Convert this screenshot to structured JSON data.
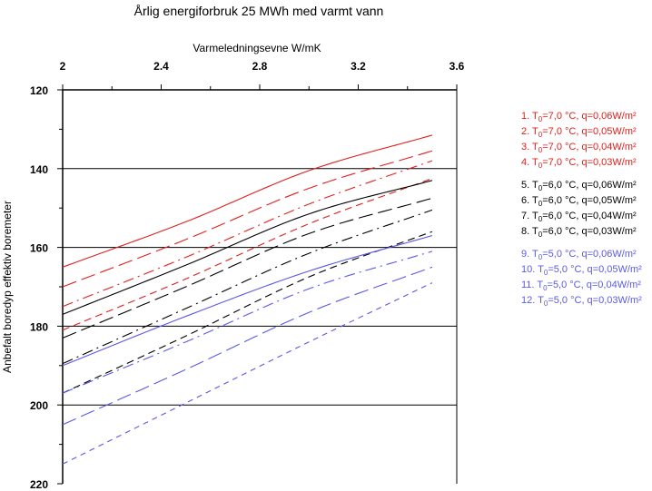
{
  "chart_data": {
    "type": "line",
    "title": "Årlig energiforbruk 25 MWh med varmt vann",
    "xlabel": "Varmeledningsevne W/mK",
    "ylabel": "Anbefalt boredyp effektiv boremeter",
    "xlim": [
      2,
      3.6
    ],
    "ylim": [
      120,
      220
    ],
    "y_inverted": true,
    "x_axis_position": "top",
    "x_ticks": [
      "2",
      "2.4",
      "2.8",
      "3.2",
      "3.6"
    ],
    "y_ticks": [
      "120",
      "140",
      "160",
      "180",
      "200",
      "220"
    ],
    "grid_y": [
      140,
      160,
      180,
      200
    ],
    "legend_position": "right",
    "series": [
      {
        "name": "1. T₀=7,0 °C, q=0,06W/m²",
        "prefix": "1. T",
        "sub": "0",
        "suffix": "=7,0 °C, q=0,06W/m²",
        "color": "#e0201c",
        "dash": "",
        "x": [
          2,
          2.5,
          3.0,
          3.5
        ],
        "y": [
          165,
          153.5,
          140.5,
          131.5
        ]
      },
      {
        "name": "2. T₀=7,0 °C, q=0,05W/m²",
        "prefix": "2. T",
        "sub": "0",
        "suffix": "=7,0 °C, q=0,05W/m²",
        "color": "#e0201c",
        "dash": "16 6",
        "x": [
          2,
          2.5,
          3.0,
          3.5
        ],
        "y": [
          170,
          158,
          145,
          135.5
        ]
      },
      {
        "name": "3. T₀=7,0 °C, q=0,04W/m²",
        "prefix": "3. T",
        "sub": "0",
        "suffix": "=7,0 °C, q=0,04W/m²",
        "color": "#e0201c",
        "dash": "12 5 2 5",
        "x": [
          2,
          2.5,
          3.0,
          3.5
        ],
        "y": [
          175,
          162.5,
          149,
          138
        ]
      },
      {
        "name": "4. T₀=7,0 °C, q=0,03W/m²",
        "prefix": "4. T",
        "sub": "0",
        "suffix": "=7,0 °C, q=0,03W/m²",
        "color": "#e0201c",
        "dash": "8 5",
        "x": [
          2,
          2.5,
          3.0,
          3.5
        ],
        "y": [
          181,
          168,
          154,
          142.5
        ]
      },
      {
        "name": "5. T₀=6,0 °C, q=0,06W/m²",
        "prefix": "5. T",
        "sub": "0",
        "suffix": "=6,0 °C, q=0,06W/m²",
        "color": "#000000",
        "dash": "",
        "x": [
          2,
          2.5,
          3.0,
          3.5
        ],
        "y": [
          177,
          164.5,
          151.5,
          143
        ]
      },
      {
        "name": "6. T₀=6,0 °C, q=0,05W/m²",
        "prefix": "6. T",
        "sub": "0",
        "suffix": "=6,0 °C, q=0,05W/m²",
        "color": "#000000",
        "dash": "16 6",
        "x": [
          2,
          2.5,
          3.0,
          3.5
        ],
        "y": [
          183,
          170,
          156.5,
          147.5
        ]
      },
      {
        "name": "7. T₀=6,0 °C, q=0,04W/m²",
        "prefix": "7. T",
        "sub": "0",
        "suffix": "=6,0 °C, q=0,04W/m²",
        "color": "#000000",
        "dash": "12 5 2 5",
        "x": [
          2,
          2.5,
          3.0,
          3.5
        ],
        "y": [
          189.5,
          175.5,
          161.5,
          150.5
        ]
      },
      {
        "name": "8. T₀=6,0 °C, q=0,03W/m²",
        "prefix": "8. T",
        "sub": "0",
        "suffix": "=6,0 °C, q=0,03W/m²",
        "color": "#000000",
        "dash": "8 5",
        "x": [
          2,
          2.5,
          3.0,
          3.5
        ],
        "y": [
          197,
          182.5,
          167.5,
          156
        ]
      },
      {
        "name": "9.   T₀=5,0 °C, q=0,06W/m²",
        "prefix": "9.   T",
        "sub": "0",
        "suffix": "=5,0 °C, q=0,06W/m²",
        "color": "#5a5ae6",
        "dash": "",
        "x": [
          2,
          2.5,
          3.0,
          3.5
        ],
        "y": [
          190,
          177.5,
          166,
          157
        ]
      },
      {
        "name": "10.  T₀=5,0 °C, q=0,05W/m²",
        "prefix": "10.  T",
        "sub": "0",
        "suffix": "=5,0 °C, q=0,05W/m²",
        "color": "#5a5ae6",
        "dash": "12 5 2 5",
        "x": [
          2,
          2.5,
          3.0,
          3.5
        ],
        "y": [
          197,
          184,
          170.5,
          161
        ]
      },
      {
        "name": "11.  T₀=5,0 °C, q=0,04W/m²",
        "prefix": "11.  T",
        "sub": "0",
        "suffix": "=5,0 °C, q=0,04W/m²",
        "color": "#5a5ae6",
        "dash": "16 6",
        "x": [
          2,
          2.5,
          3.0,
          3.5
        ],
        "y": [
          205,
          191,
          176.5,
          165
        ]
      },
      {
        "name": "12.  T₀=5,0 °C, q=0,03W/m²",
        "prefix": "12.  T",
        "sub": "0",
        "suffix": "=5,0 °C, q=0,03W/m²",
        "color": "#5a5ae6",
        "dash": "6 5",
        "x": [
          2,
          2.5,
          3.0,
          3.5
        ],
        "y": [
          215,
          199.5,
          184,
          169
        ]
      }
    ]
  }
}
